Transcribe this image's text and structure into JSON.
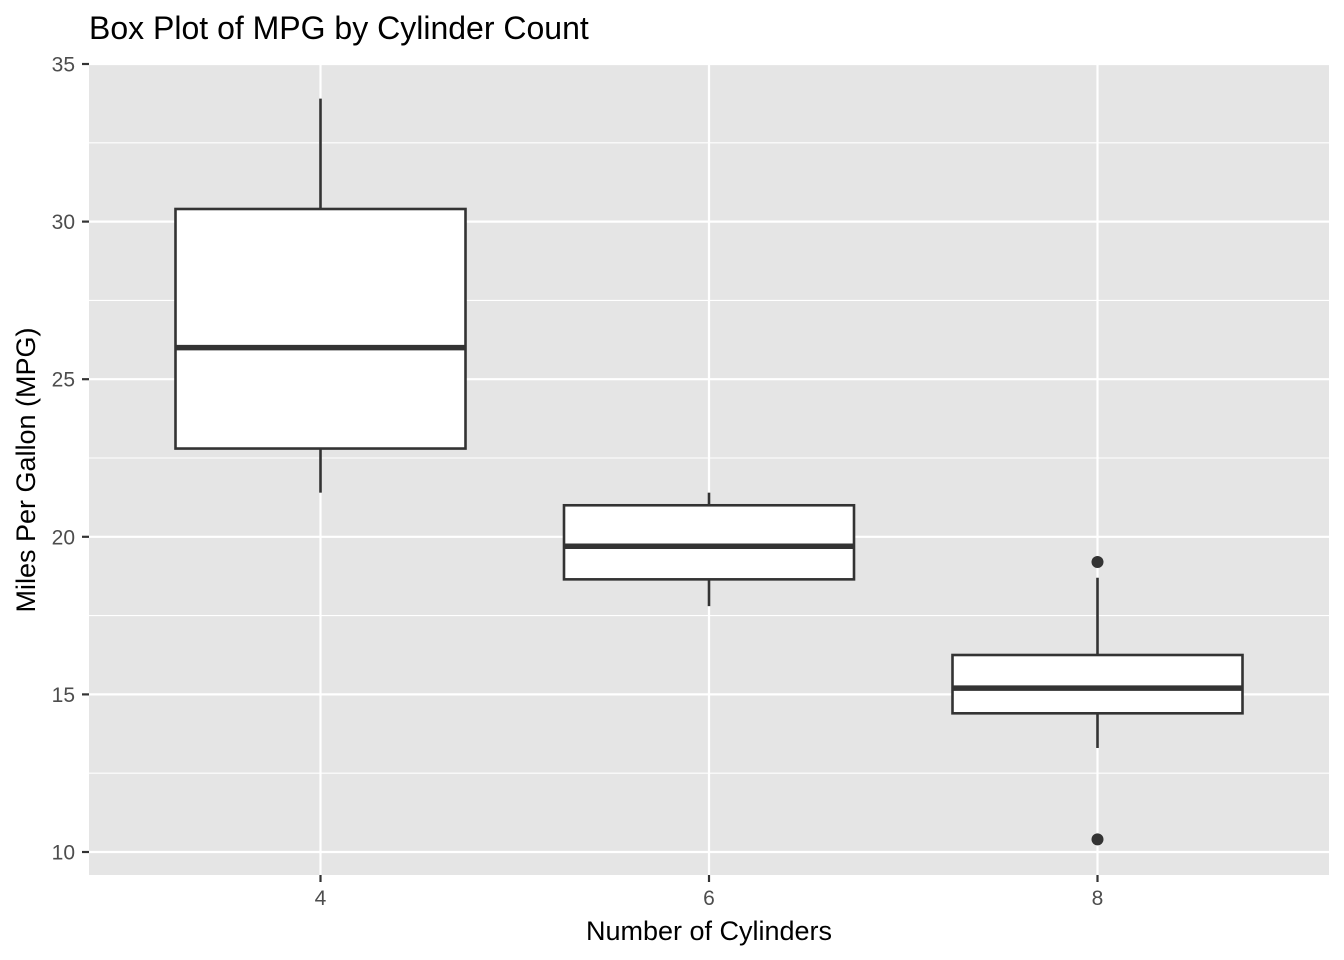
{
  "chart_data": {
    "type": "boxplot",
    "title": "Box Plot of MPG by Cylinder Count",
    "xlabel": "Number of Cylinders",
    "ylabel": "Miles Per Gallon (MPG)",
    "categories": [
      "4",
      "6",
      "8"
    ],
    "ylim": [
      9.2,
      35.0
    ],
    "y_ticks": [
      10,
      15,
      20,
      25,
      30,
      35
    ],
    "grid": true,
    "boxes": [
      {
        "category": "4",
        "whisker_low": 21.4,
        "q1": 22.8,
        "median": 26.0,
        "q3": 30.4,
        "whisker_high": 33.9,
        "outliers": []
      },
      {
        "category": "6",
        "whisker_low": 17.8,
        "q1": 18.65,
        "median": 19.7,
        "q3": 21.0,
        "whisker_high": 21.4,
        "outliers": []
      },
      {
        "category": "8",
        "whisker_low": 13.3,
        "q1": 14.4,
        "median": 15.2,
        "q3": 16.25,
        "whisker_high": 18.7,
        "outliers": [
          10.4,
          19.2
        ]
      }
    ],
    "colors": {
      "panel_background": "#e5e5e5",
      "grid_line": "#ffffff",
      "box_fill": "#ffffff",
      "box_stroke": "#333333",
      "tick_label": "#4d4d4d",
      "axis_tick": "#333333",
      "outlier": "#333333"
    }
  }
}
